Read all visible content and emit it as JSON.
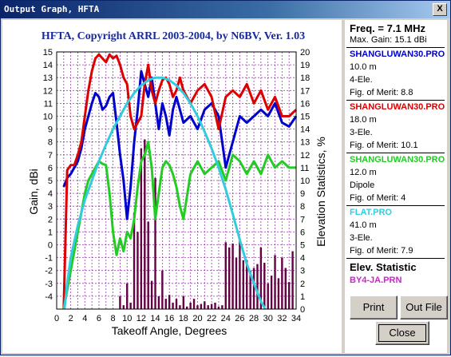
{
  "window": {
    "title": "Output Graph, HFTA",
    "close_label": "X"
  },
  "chart_data": {
    "type": "line",
    "title": "HFTA, Copyright ARRL 2003-2004, by N6BV, Ver. 1.03",
    "xlabel": "Takeoff Angle, Degrees",
    "ylabel": "Gain, dBi",
    "y2label": "Elevation Statistics, %",
    "xlim": [
      0,
      34
    ],
    "ylim": [
      -5,
      15
    ],
    "y2lim": [
      0,
      20
    ],
    "x_ticks": [
      "0",
      "2",
      "4",
      "6",
      "8",
      "10",
      "12",
      "14",
      "16",
      "18",
      "20",
      "22",
      "24",
      "26",
      "28",
      "30",
      "32",
      "34"
    ],
    "y_ticks": [
      "-4",
      "-3",
      "-2",
      "-1",
      "0",
      "1",
      "2",
      "3",
      "4",
      "5",
      "6",
      "7",
      "8",
      "9",
      "10",
      "11",
      "12",
      "13",
      "14",
      "15"
    ],
    "y2_ticks": [
      "0",
      "1",
      "2",
      "3",
      "4",
      "5",
      "6",
      "7",
      "8",
      "9",
      "10",
      "11",
      "12",
      "13",
      "14",
      "15",
      "16",
      "17",
      "18",
      "19",
      "20"
    ],
    "grid": true,
    "series": [
      {
        "name": "SHANGLUWAN30.PRO",
        "color": "#0000cc",
        "x": [
          1,
          1.5,
          2,
          2.5,
          3,
          3.5,
          4,
          4.5,
          5,
          5.5,
          6,
          6.5,
          7,
          7.5,
          8,
          8.5,
          9,
          9.5,
          10,
          10.5,
          11,
          11.5,
          12,
          12.5,
          13,
          13.5,
          14,
          14.5,
          15,
          15.5,
          16,
          16.5,
          17,
          17.5,
          18,
          19,
          20,
          21,
          22,
          23,
          24,
          25,
          26,
          27,
          28,
          29,
          30,
          31,
          32,
          33,
          34
        ],
        "y": [
          4.5,
          5.2,
          5.5,
          6,
          6.5,
          7.5,
          9,
          10,
          11,
          11.8,
          11.5,
          10.5,
          10.8,
          11.5,
          11.8,
          9.5,
          7,
          5,
          2,
          4.5,
          8,
          10.5,
          13.5,
          12.5,
          11.5,
          13,
          11,
          9,
          11,
          10,
          8.5,
          10.5,
          11.5,
          10.5,
          9.5,
          10,
          9,
          10.5,
          11,
          10,
          6,
          8,
          10,
          9.5,
          10,
          10.5,
          10,
          11,
          9.5,
          9.2,
          10
        ]
      },
      {
        "name": "SHANGLUWAN30.PRO",
        "color": "#dd0000",
        "x": [
          1,
          1.5,
          2,
          2.5,
          3,
          3.5,
          4,
          4.5,
          5,
          5.5,
          6,
          6.5,
          7,
          7.5,
          8,
          8.5,
          9,
          9.5,
          10,
          10.5,
          11,
          11.5,
          12,
          12.5,
          13,
          13.5,
          14,
          14.5,
          15,
          15.5,
          16,
          16.5,
          17,
          17.5,
          18,
          19,
          20,
          21,
          22,
          23,
          24,
          25,
          26,
          27,
          28,
          29,
          30,
          31,
          32,
          33,
          34
        ],
        "y": [
          -5,
          5.8,
          6.2,
          6.2,
          7,
          8,
          10,
          12,
          13.5,
          14.5,
          14.8,
          14.5,
          14.2,
          14.8,
          14.5,
          14.7,
          14,
          13,
          12.5,
          10,
          9,
          9.5,
          10,
          12.5,
          14,
          12,
          11,
          12,
          12.8,
          13,
          12.5,
          11.5,
          12,
          13,
          12,
          11,
          12,
          12.5,
          11.5,
          9,
          11.5,
          12,
          11.5,
          12.5,
          11,
          12,
          10.5,
          11.5,
          10,
          10,
          10.5
        ]
      },
      {
        "name": "SHANGLUWAN30.PRO",
        "color": "#22cc22",
        "x": [
          1,
          1.5,
          2,
          2.5,
          3,
          3.5,
          4,
          4.5,
          5,
          5.5,
          6,
          6.5,
          7,
          7.5,
          8,
          8.5,
          9,
          9.5,
          10,
          10.5,
          11,
          11.5,
          12,
          12.5,
          13,
          13.5,
          14,
          14.5,
          15,
          15.5,
          16,
          16.5,
          17,
          17.5,
          18,
          19,
          20,
          21,
          22,
          23,
          24,
          25,
          26,
          27,
          28,
          29,
          30,
          31,
          32,
          33,
          34
        ],
        "y": [
          -5,
          -3.5,
          -2,
          -0.5,
          1,
          2.5,
          4,
          5,
          5.5,
          6,
          6.5,
          6.3,
          6.2,
          4,
          1,
          -0.8,
          0.5,
          -0.5,
          1,
          0.5,
          2,
          4.5,
          6.5,
          7,
          8,
          6,
          2,
          4,
          6,
          6.5,
          6.2,
          5.5,
          4.5,
          3,
          2,
          5.5,
          6.5,
          5.5,
          6,
          6.5,
          5,
          7,
          6.5,
          5.5,
          6.5,
          5.5,
          7,
          6,
          6.5,
          6,
          6
        ]
      },
      {
        "name": "FLAT.PRO",
        "color": "#33ccdd",
        "x": [
          1.1,
          1.5,
          2,
          3,
          4,
          5,
          6,
          7,
          8,
          9,
          10,
          11,
          12,
          13,
          14,
          15,
          16,
          17,
          18,
          19,
          20,
          21,
          22,
          23,
          24,
          25,
          26,
          27,
          28,
          29,
          29.6
        ],
        "y": [
          -5,
          -3,
          -1,
          1.5,
          3.5,
          5,
          6.5,
          7.8,
          9,
          10,
          11,
          11.8,
          12.4,
          12.8,
          13,
          13,
          12.8,
          12.4,
          11.8,
          11,
          10,
          8.8,
          7.5,
          6,
          4.3,
          2.4,
          0.4,
          -1.5,
          -3,
          -4.4,
          -5
        ]
      },
      {
        "name": "BY4-JA.PRN",
        "type": "bar",
        "axis": "y2",
        "color": "#660044",
        "x": [
          9,
          9.5,
          10,
          10.5,
          11,
          11.5,
          12,
          12.5,
          13,
          13.5,
          14,
          14.5,
          15,
          15.5,
          16,
          16.5,
          17,
          17.5,
          18,
          18.5,
          19,
          19.5,
          20,
          20.5,
          21,
          21.5,
          22,
          22.5,
          23,
          23.5,
          24,
          24.5,
          25,
          25.5,
          26,
          26.5,
          27,
          27.5,
          28,
          28.5,
          29,
          29.5,
          30,
          30.5,
          31,
          31.5,
          32,
          32.5,
          33,
          33.5
        ],
        "y": [
          1,
          0.3,
          2,
          0.5,
          7.5,
          6,
          12.5,
          13.2,
          6.8,
          2.2,
          10.2,
          1,
          3,
          0.8,
          1.1,
          0.5,
          0.8,
          0.3,
          1,
          0.2,
          0.5,
          0.8,
          0.3,
          0.4,
          0.6,
          0.3,
          0.4,
          0.5,
          0.2,
          0.3,
          5.2,
          4.8,
          5.1,
          4,
          5.4,
          3.8,
          3.8,
          3,
          3.2,
          3.5,
          4.8,
          3.6,
          2,
          2.6,
          4.2,
          2.4,
          4,
          3.2,
          2.1,
          4.5
        ]
      }
    ]
  },
  "panel": {
    "freq": "Freq. = 7.1 MHz",
    "max_gain": "Max. Gain: 15.1 dBi",
    "entries": [
      {
        "file": "SHANGLUWAN30.PRO",
        "height": "10.0 m",
        "type": "4-Ele.",
        "merit": "Fig. of Merit:  8.8",
        "color": "#0000cc"
      },
      {
        "file": "SHANGLUWAN30.PRO",
        "height": "18.0 m",
        "type": "3-Ele.",
        "merit": "Fig. of Merit:  10.1",
        "color": "#dd0000"
      },
      {
        "file": "SHANGLUWAN30.PRO",
        "height": "12.0 m",
        "type": "Dipole",
        "merit": "Fig. of Merit:  4",
        "color": "#22cc22"
      },
      {
        "file": "FLAT.PRO",
        "height": "41.0 m",
        "type": "3-Ele.",
        "merit": "Fig. of Merit:  7.9",
        "color": "#33ccdd"
      }
    ],
    "elev_label": "Elev. Statistic",
    "elev_file": "BY4-JA.PRN",
    "elev_color": "#cc22cc"
  },
  "buttons": {
    "print": "Print",
    "out_file": "Out File",
    "close": "Close"
  }
}
